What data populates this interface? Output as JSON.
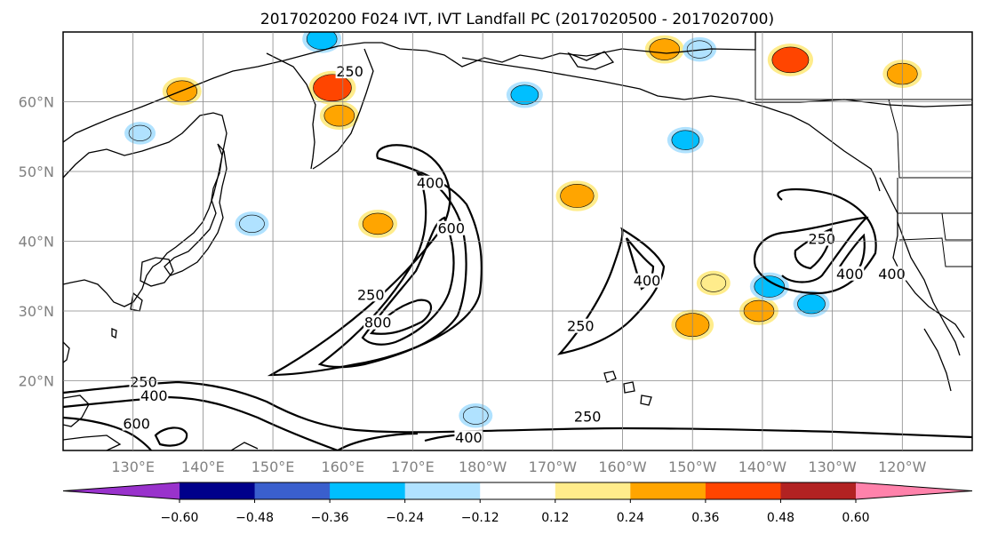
{
  "title": "2017020200 F024 IVT, IVT Landfall PC (2017020500 - 2017020700)",
  "map": {
    "lon_range": [
      120,
      250
    ],
    "lat_range": [
      10,
      70
    ],
    "lat_ticks": [
      "60°N",
      "50°N",
      "40°N",
      "30°N",
      "20°N"
    ],
    "lon_ticks": [
      "130°E",
      "140°E",
      "150°E",
      "160°E",
      "170°E",
      "180°W",
      "170°W",
      "160°W",
      "150°W",
      "140°W",
      "130°W",
      "120°W"
    ],
    "grid": true
  },
  "ivt_contours": {
    "levels": [
      250,
      400,
      600,
      800
    ],
    "labels": [
      {
        "text": "250",
        "lon": 161,
        "lat": 64
      },
      {
        "text": "400",
        "lon": 172.5,
        "lat": 48
      },
      {
        "text": "600",
        "lon": 175.5,
        "lat": 41.5
      },
      {
        "text": "250",
        "lon": 164,
        "lat": 32
      },
      {
        "text": "800",
        "lon": 165,
        "lat": 28
      },
      {
        "text": "400",
        "lon": 203.5,
        "lat": 34
      },
      {
        "text": "250",
        "lon": 194,
        "lat": 27.5
      },
      {
        "text": "250",
        "lon": 228.5,
        "lat": 40
      },
      {
        "text": "400",
        "lon": 232.5,
        "lat": 35
      },
      {
        "text": "400",
        "lon": 238.5,
        "lat": 35
      },
      {
        "text": "250",
        "lon": 131.5,
        "lat": 19.5
      },
      {
        "text": "400",
        "lon": 133,
        "lat": 17.5
      },
      {
        "text": "600",
        "lon": 130.5,
        "lat": 13.5
      },
      {
        "text": "250",
        "lon": 195,
        "lat": 14.5
      },
      {
        "text": "400",
        "lon": 178,
        "lat": 11.5
      }
    ]
  },
  "colorbar": {
    "ticks": [
      "−0.60",
      "−0.48",
      "−0.36",
      "−0.24",
      "−0.12",
      "0.12",
      "0.24",
      "0.36",
      "0.48",
      "0.60"
    ],
    "colors": [
      "#9932cc",
      "#00008b",
      "#3a5fcd",
      "#00bfff",
      "#b0e2ff",
      "#ffffff",
      "#ffec8b",
      "#ffa500",
      "#ff4500",
      "#b22222",
      "#ff82ab"
    ]
  },
  "pc_anomalies": [
    {
      "lon": 158.5,
      "lat": 62,
      "value": 0.45
    },
    {
      "lon": 159.5,
      "lat": 58,
      "value": 0.3
    },
    {
      "lon": 224,
      "lat": 66,
      "value": 0.42
    },
    {
      "lon": 210,
      "lat": 28,
      "value": 0.36
    },
    {
      "lon": 219.5,
      "lat": 30,
      "value": 0.3
    },
    {
      "lon": 213,
      "lat": 34,
      "value": 0.2
    },
    {
      "lon": 193.5,
      "lat": 46.5,
      "value": 0.36
    },
    {
      "lon": 165,
      "lat": 42.5,
      "value": 0.3
    },
    {
      "lon": 137,
      "lat": 61.5,
      "value": 0.3
    },
    {
      "lon": 206,
      "lat": 67.5,
      "value": 0.3
    },
    {
      "lon": 240,
      "lat": 64,
      "value": 0.3
    },
    {
      "lon": 221,
      "lat": 33.5,
      "value": -0.3
    },
    {
      "lon": 227,
      "lat": 31,
      "value": -0.25
    },
    {
      "lon": 209,
      "lat": 54.5,
      "value": -0.25
    },
    {
      "lon": 157,
      "lat": 69,
      "value": -0.3
    },
    {
      "lon": 211,
      "lat": 67.5,
      "value": -0.2
    },
    {
      "lon": 186,
      "lat": 61,
      "value": -0.25
    },
    {
      "lon": 179,
      "lat": 15,
      "value": -0.2
    },
    {
      "lon": 147,
      "lat": 42.5,
      "value": -0.2
    },
    {
      "lon": 131,
      "lat": 55.5,
      "value": -0.15
    }
  ]
}
